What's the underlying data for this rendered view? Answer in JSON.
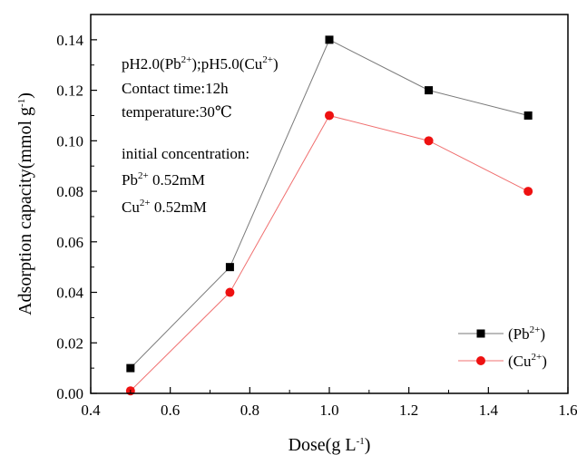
{
  "chart_data": {
    "type": "line",
    "xlabel": {
      "main": "Dose(g L",
      "sup": "-1",
      "tail": ")"
    },
    "ylabel": {
      "main": "Adsorption capacity(mmol g",
      "sup": "-1",
      "tail": ")"
    },
    "xlim": [
      0.4,
      1.6
    ],
    "ylim": [
      0,
      0.15
    ],
    "xticks": [
      0.4,
      0.6,
      0.8,
      1.0,
      1.2,
      1.4,
      1.6
    ],
    "xtick_labels": [
      "0.4",
      "0.6",
      "0.8",
      "1.0",
      "1.2",
      "1.4",
      "1.6"
    ],
    "yticks": [
      0,
      0.02,
      0.04,
      0.06,
      0.08,
      0.1,
      0.12,
      0.14
    ],
    "ytick_labels": [
      "0.00",
      "0.02",
      "0.04",
      "0.06",
      "0.08",
      "0.10",
      "0.12",
      "0.14"
    ],
    "grid": false,
    "legend_position": "bottom-right",
    "series": [
      {
        "name": "(Pb2+)",
        "legend": {
          "pre": "(Pb",
          "sup": "2+",
          "post": ")"
        },
        "marker": "square",
        "marker_color": "#000000",
        "line_color": "#7a7a7a",
        "x": [
          0.5,
          0.75,
          1.0,
          1.25,
          1.5
        ],
        "y": [
          0.01,
          0.05,
          0.14,
          0.12,
          0.11
        ]
      },
      {
        "name": "(Cu2+)",
        "legend": {
          "pre": "(Cu",
          "sup": "2+",
          "post": ")"
        },
        "marker": "circle",
        "marker_color": "#ee1111",
        "line_color": "#f07070",
        "x": [
          0.5,
          0.75,
          1.0,
          1.25,
          1.5
        ],
        "y": [
          0.001,
          0.04,
          0.11,
          0.1,
          0.08
        ]
      }
    ],
    "annotations": {
      "line1": [
        {
          "text": "pH2.0(Pb"
        },
        {
          "text": "2+",
          "sup": true
        },
        {
          "text": ");pH5.0(Cu"
        },
        {
          "text": "2+",
          "sup": true
        },
        {
          "text": ")"
        }
      ],
      "line2": [
        {
          "text": "Contact time:12h"
        }
      ],
      "line3": [
        {
          "text": "temperature:30℃"
        }
      ],
      "line4": [
        {
          "text": "initial concentration:"
        }
      ],
      "line5": [
        {
          "text": "Pb"
        },
        {
          "text": "2+",
          "sup": true
        },
        {
          "text": "   0.52mM"
        }
      ],
      "line6": [
        {
          "text": "Cu"
        },
        {
          "text": "2+",
          "sup": true
        },
        {
          "text": "  0.52mM"
        }
      ]
    }
  }
}
